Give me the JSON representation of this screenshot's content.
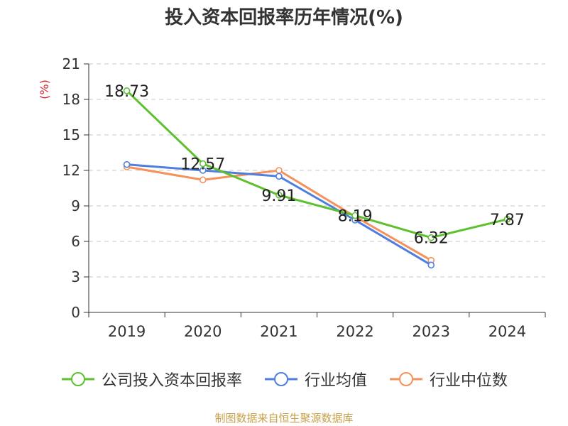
{
  "title": "投入资本回报率历年情况(%)",
  "source": "制图数据来自恒生聚源数据库",
  "chart_data": {
    "type": "line",
    "title": "投入资本回报率历年情况(%)",
    "ylabel": "(%)",
    "xlabel": "",
    "categories": [
      "2019",
      "2020",
      "2021",
      "2022",
      "2023",
      "2024"
    ],
    "ylim": [
      0,
      21
    ],
    "yticks": [
      0,
      3,
      6,
      9,
      12,
      15,
      18,
      21
    ],
    "grid": true,
    "legend_position": "bottom",
    "series": [
      {
        "name": "公司投入资本回报率",
        "color": "#5dc12f",
        "values": [
          18.73,
          12.57,
          9.91,
          8.19,
          6.32,
          7.87
        ],
        "labels": [
          "18.73",
          "12.57",
          "9.91",
          "8.19",
          "6.32",
          "7.87"
        ]
      },
      {
        "name": "行业均值",
        "color": "#4f7ee0",
        "values": [
          12.5,
          12.0,
          11.5,
          7.8,
          4.0,
          null
        ],
        "labels": []
      },
      {
        "name": "行业中位数",
        "color": "#f5915a",
        "values": [
          12.3,
          11.2,
          12.0,
          8.1,
          4.4,
          null
        ],
        "labels": []
      }
    ]
  }
}
